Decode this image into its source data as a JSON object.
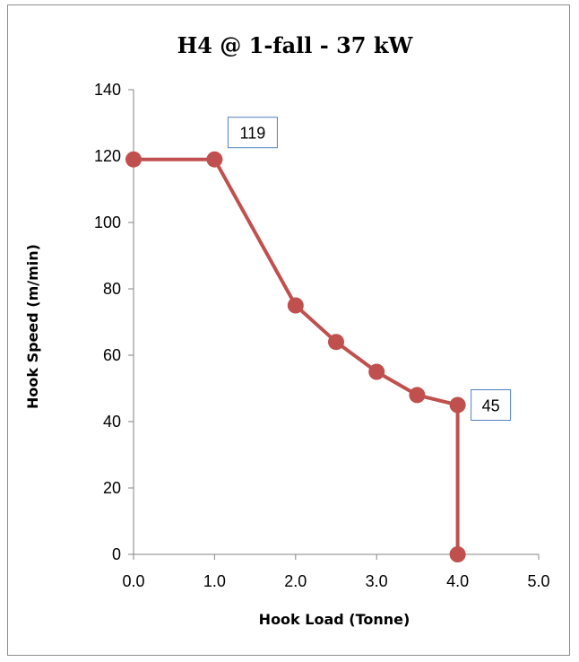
{
  "chart_data": {
    "type": "line",
    "title": "H4 @ 1-fall - 37 kW",
    "xlabel": "Hook Load (Tonne)",
    "ylabel": "Hook Speed (m/min)",
    "xlim": [
      0,
      5
    ],
    "ylim": [
      0,
      140
    ],
    "x_ticks": [
      "0.0",
      "1.0",
      "2.0",
      "3.0",
      "4.0",
      "5.0"
    ],
    "y_ticks": [
      "0",
      "20",
      "40",
      "60",
      "80",
      "100",
      "120",
      "140"
    ],
    "grid": false,
    "legend": "none",
    "series": [
      {
        "x": [
          0.0,
          1.0,
          2.0,
          2.5,
          3.0,
          3.5,
          4.0,
          4.0
        ],
        "y": [
          119,
          119,
          75,
          64,
          55,
          48,
          45,
          0
        ],
        "color": "#c0504d"
      }
    ],
    "annotations": [
      {
        "text": "119",
        "x": 1.0,
        "y": 119
      },
      {
        "text": "45",
        "x": 4.0,
        "y": 45
      }
    ],
    "annotation_border_color": "#4f81bd"
  }
}
